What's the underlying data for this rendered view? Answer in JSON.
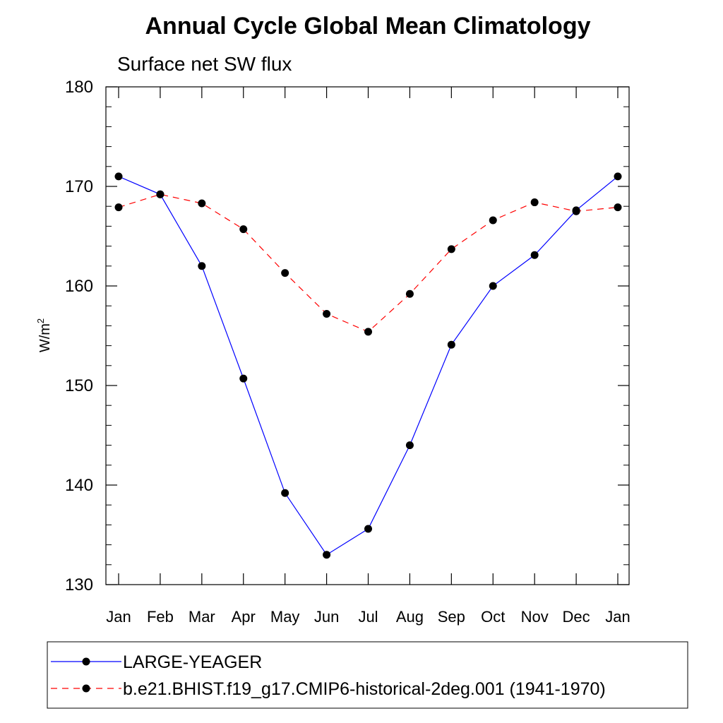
{
  "chart_data": {
    "type": "line",
    "title": "Annual Cycle Global Mean Climatology",
    "subtitle": "Surface net SW flux",
    "xlabel": "",
    "ylabel": "W/m",
    "ylabel_superscript": "2",
    "categories": [
      "Jan",
      "Feb",
      "Mar",
      "Apr",
      "May",
      "Jun",
      "Jul",
      "Aug",
      "Sep",
      "Oct",
      "Nov",
      "Dec",
      "Jan"
    ],
    "ylim": [
      130,
      180
    ],
    "yticks": [
      "130",
      "140",
      "150",
      "160",
      "170",
      "180"
    ],
    "series": [
      {
        "name": "LARGE-YEAGER",
        "color": "#0000ff",
        "dash": "solid",
        "values": [
          171.0,
          169.2,
          162.0,
          150.7,
          139.2,
          133.0,
          135.6,
          144.0,
          154.1,
          160.0,
          163.1,
          167.6,
          171.0
        ]
      },
      {
        "name": "b.e21.BHIST.f19_g17.CMIP6-historical-2deg.001 (1941-1970)",
        "color": "#ff0000",
        "dash": "dashed",
        "values": [
          167.9,
          169.2,
          168.3,
          165.7,
          161.3,
          157.2,
          155.4,
          159.2,
          163.7,
          166.6,
          168.4,
          167.5,
          167.9
        ]
      }
    ],
    "grid": false,
    "legend_position": "bottom"
  }
}
